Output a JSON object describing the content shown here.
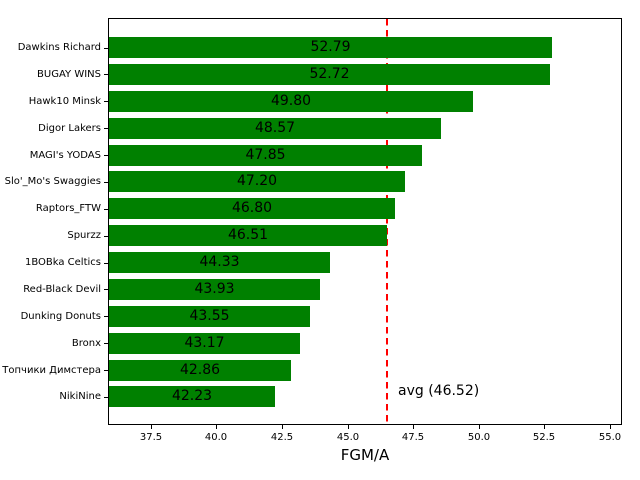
{
  "chart_data": {
    "type": "bar",
    "orientation": "horizontal",
    "title": "",
    "xlabel": "FGM/A",
    "categories": [
      "Dawkins Richard",
      "BUGAY WINS",
      "Hawk10 Minsk",
      "Digor Lakers",
      "MAGI's YODAS",
      "Slo'_Mo's Swaggies",
      "Raptors_FTW",
      "Spurzz",
      "1BOBka Celtics",
      "Red-Black Devil",
      "Dunking Donuts",
      "Bronx",
      "Топчики Димстера",
      "NikiNine"
    ],
    "values": [
      52.79,
      52.72,
      49.8,
      48.57,
      47.85,
      47.2,
      46.8,
      46.51,
      44.33,
      43.93,
      43.55,
      43.17,
      42.86,
      42.23
    ],
    "value_labels": [
      "52.79",
      "52.72",
      "49.80",
      "48.57",
      "47.85",
      "47.20",
      "46.80",
      "46.51",
      "44.33",
      "43.93",
      "43.55",
      "43.17",
      "42.86",
      "42.23"
    ],
    "xticks": [
      37.5,
      40.0,
      42.5,
      45.0,
      47.5,
      50.0,
      52.5,
      55.0
    ],
    "xtick_labels": [
      "37.5",
      "40.0",
      "42.5",
      "45.0",
      "47.5",
      "50.0",
      "52.5",
      "55.0"
    ],
    "xlim": [
      35.9,
      55.43
    ],
    "avg_line": {
      "value": 46.52,
      "label": "avg (46.52)",
      "color": "#ff0000",
      "style": "dashed"
    },
    "colors": {
      "bar": "#008000",
      "value_text": "#000000",
      "axis": "#000000",
      "background": "#ffffff"
    },
    "grid": false,
    "legend_position": "none"
  }
}
